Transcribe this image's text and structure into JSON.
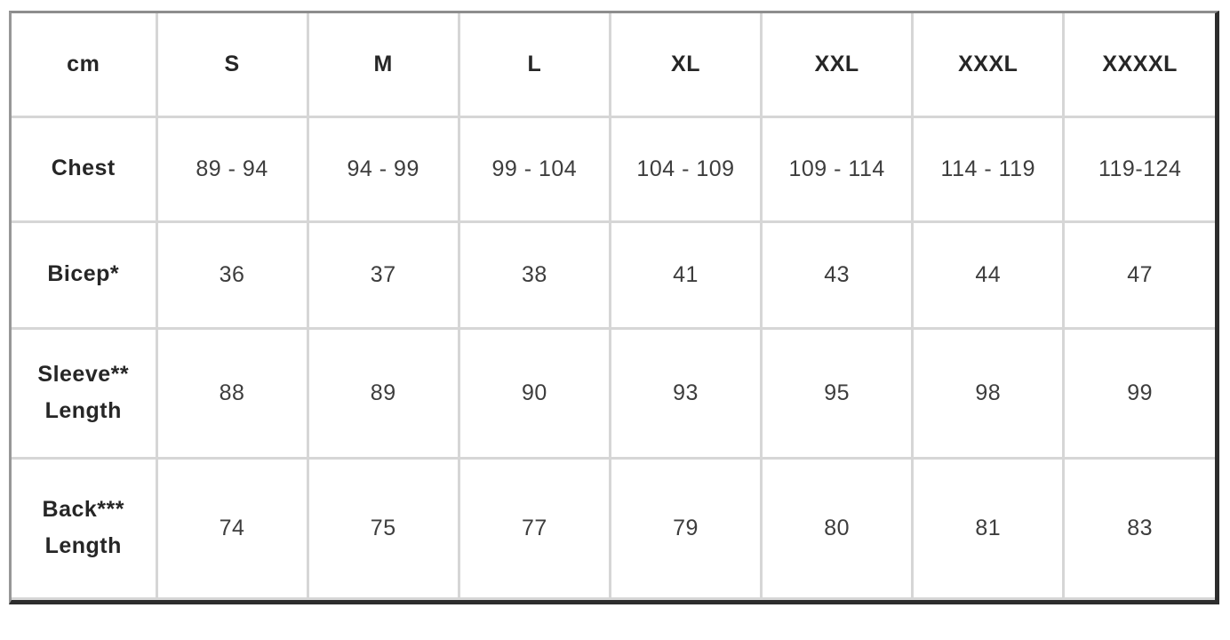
{
  "table": {
    "unit_header": "cm",
    "size_columns": [
      "S",
      "M",
      "L",
      "XL",
      "XXL",
      "XXXL",
      "XXXXL"
    ],
    "rows": [
      {
        "label": "Chest",
        "values": [
          "89 - 94",
          "94 - 99",
          "99 - 104",
          "104 - 109",
          "109 - 114",
          "114 - 119",
          "119-124"
        ]
      },
      {
        "label": "Bicep*",
        "values": [
          "36",
          "37",
          "38",
          "41",
          "43",
          "44",
          "47"
        ]
      },
      {
        "label": "Sleeve**\nLength",
        "values": [
          "88",
          "89",
          "90",
          "93",
          "95",
          "98",
          "99"
        ]
      },
      {
        "label": "Back***\nLength",
        "values": [
          "74",
          "75",
          "77",
          "79",
          "80",
          "81",
          "83"
        ]
      }
    ],
    "row_class_names": [
      "r-chest",
      "r-bicep",
      "r-sleeve",
      "r-back"
    ]
  },
  "colors": {
    "outer_border_top_left": "#8d8d8d",
    "outer_border_bottom_right": "#2d2d2d",
    "inner_grid": "#d6d6d6",
    "header_text": "#262626",
    "value_text": "#3d3d3d",
    "background": "#ffffff"
  }
}
